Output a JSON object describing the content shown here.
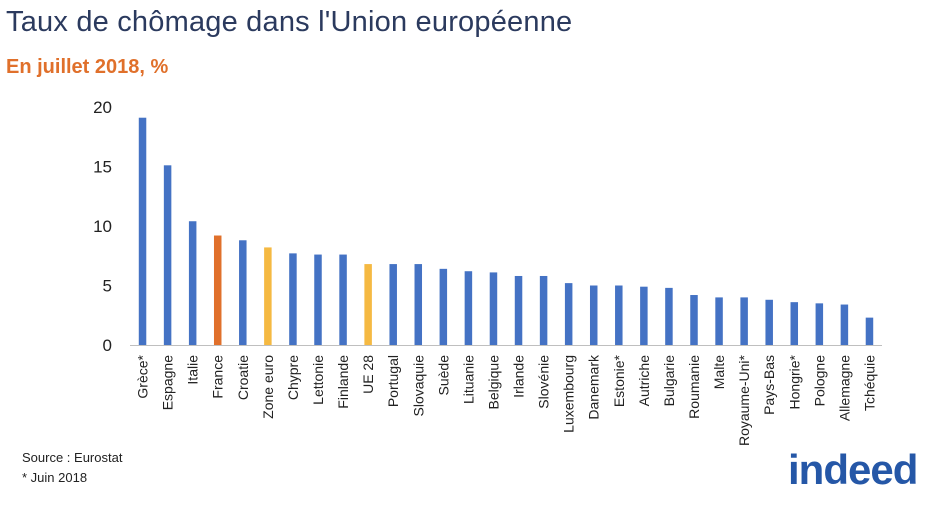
{
  "title": "Taux de chômage dans l'Union européenne",
  "subtitle": "En juillet 2018, %",
  "footnotes": {
    "source": "Source : Eurostat",
    "note": "* Juin 2018"
  },
  "logo": {
    "text": "indeed",
    "color": "#2557a7"
  },
  "colors": {
    "default": "#4472c4",
    "highlight_france": "#e0702b",
    "highlight_aggregate": "#f5b942",
    "title": "#2b3a5e",
    "subtitle": "#e0702b"
  },
  "chart_data": {
    "type": "bar",
    "title": "Taux de chômage dans l'Union européenne",
    "subtitle": "En juillet 2018, %",
    "xlabel": "",
    "ylabel": "",
    "ylim": [
      0,
      20
    ],
    "yticks": [
      0,
      5,
      10,
      15,
      20
    ],
    "grid": false,
    "legend": "none",
    "categories": [
      "Grèce*",
      "Espagne",
      "Italie",
      "France",
      "Croatie",
      "Zone euro",
      "Chypre",
      "Lettonie",
      "Finlande",
      "UE 28",
      "Portugal",
      "Slovaquie",
      "Suède",
      "Lituanie",
      "Belgique",
      "Irlande",
      "Slovénie",
      "Luxembourg",
      "Danemark",
      "Estonie*",
      "Autriche",
      "Bulgarie",
      "Roumanie",
      "Malte",
      "Royaume-Uni*",
      "Pays-Bas",
      "Hongrie*",
      "Pologne",
      "Allemagne",
      "Tchéquie"
    ],
    "values": [
      19.1,
      15.1,
      10.4,
      9.2,
      8.8,
      8.2,
      7.7,
      7.6,
      7.6,
      6.8,
      6.8,
      6.8,
      6.4,
      6.2,
      6.1,
      5.8,
      5.8,
      5.2,
      5.0,
      5.0,
      4.9,
      4.8,
      4.2,
      4.0,
      4.0,
      3.8,
      3.6,
      3.5,
      3.4,
      2.3
    ],
    "bar_colors": [
      "default",
      "default",
      "default",
      "highlight_france",
      "default",
      "highlight_aggregate",
      "default",
      "default",
      "default",
      "highlight_aggregate",
      "default",
      "default",
      "default",
      "default",
      "default",
      "default",
      "default",
      "default",
      "default",
      "default",
      "default",
      "default",
      "default",
      "default",
      "default",
      "default",
      "default",
      "default",
      "default",
      "default"
    ]
  }
}
